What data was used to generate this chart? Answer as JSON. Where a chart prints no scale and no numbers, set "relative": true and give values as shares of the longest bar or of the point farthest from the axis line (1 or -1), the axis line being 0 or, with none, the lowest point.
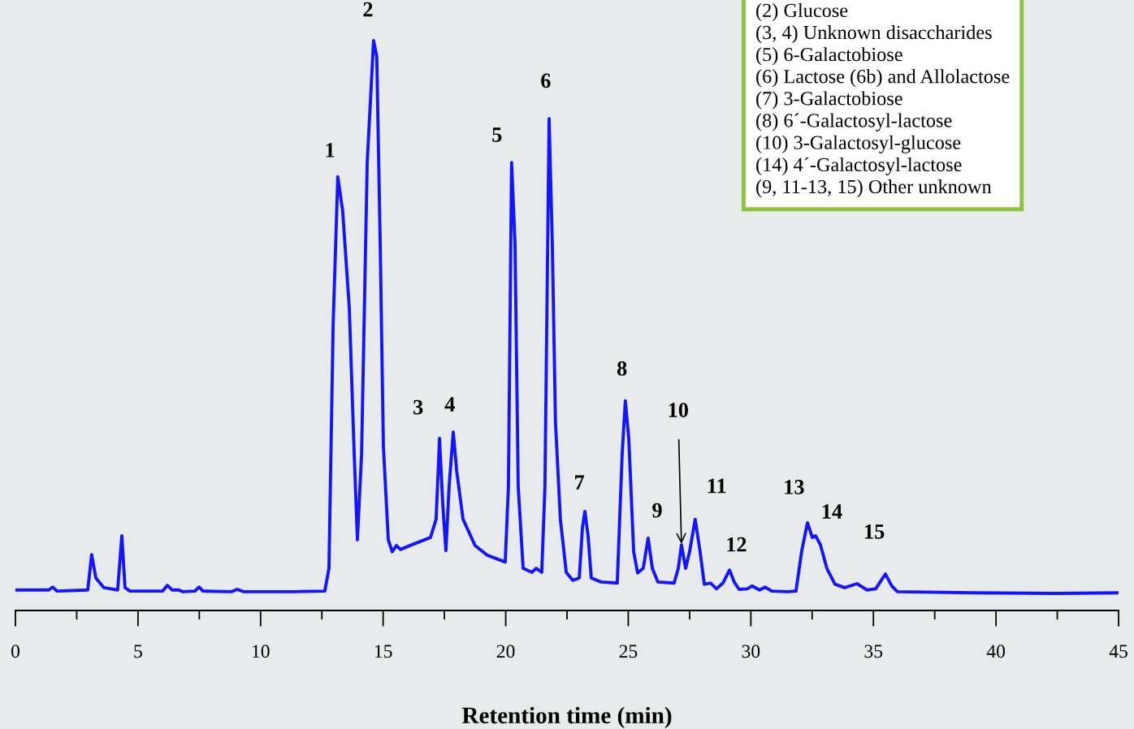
{
  "chart_data": {
    "type": "line",
    "relative": true,
    "xlabel": "Retention time (min)",
    "xlim": [
      0,
      45
    ],
    "xticks": [
      0,
      5,
      10,
      15,
      20,
      25,
      30,
      35,
      40,
      45
    ],
    "grid": false,
    "marker": "none",
    "line_style": "solid",
    "series": [
      {
        "color": "#1414ff",
        "x": [
          0,
          1.36,
          1.52,
          1.69,
          2.95,
          3.11,
          3.28,
          3.61,
          4.17,
          4.34,
          4.47,
          4.67,
          6.0,
          6.2,
          6.39,
          6.66,
          6.83,
          7.32,
          7.49,
          7.65,
          8.81,
          9.05,
          9.31,
          11.3,
          12.62,
          12.79,
          12.96,
          13.15,
          13.35,
          13.62,
          13.82,
          13.95,
          14.12,
          14.35,
          14.61,
          14.74,
          14.88,
          15.01,
          15.21,
          15.37,
          15.54,
          15.71,
          16.27,
          16.93,
          17.16,
          17.3,
          17.43,
          17.56,
          17.69,
          17.86,
          18.0,
          18.26,
          18.75,
          19.25,
          19.98,
          20.11,
          20.24,
          20.38,
          20.51,
          20.71,
          21.07,
          21.24,
          21.47,
          21.6,
          21.77,
          21.9,
          22.03,
          22.23,
          22.47,
          22.73,
          23.0,
          23.13,
          23.23,
          23.36,
          23.49,
          23.89,
          24.55,
          24.75,
          24.88,
          25.02,
          25.22,
          25.38,
          25.61,
          25.81,
          25.98,
          26.21,
          26.87,
          27.04,
          27.17,
          27.34,
          27.5,
          27.73,
          27.93,
          28.1,
          28.36,
          28.6,
          28.86,
          29.13,
          29.32,
          29.52,
          29.85,
          30.05,
          30.35,
          30.58,
          30.85,
          31.51,
          31.84,
          32.07,
          32.31,
          32.51,
          32.64,
          32.84,
          33.1,
          33.43,
          33.83,
          34.33,
          34.73,
          35.09,
          35.49,
          35.75,
          35.98,
          39.13,
          42.44,
          45
        ],
        "values": [
          0.036,
          0.036,
          0.041,
          0.034,
          0.036,
          0.098,
          0.057,
          0.04,
          0.036,
          0.131,
          0.04,
          0.034,
          0.034,
          0.044,
          0.036,
          0.036,
          0.033,
          0.034,
          0.041,
          0.034,
          0.033,
          0.037,
          0.033,
          0.033,
          0.034,
          0.074,
          0.501,
          0.761,
          0.701,
          0.53,
          0.274,
          0.124,
          0.274,
          0.786,
          1,
          0.972,
          0.644,
          0.288,
          0.124,
          0.103,
          0.114,
          0.107,
          0.117,
          0.128,
          0.16,
          0.302,
          0.188,
          0.105,
          0.217,
          0.313,
          0.245,
          0.16,
          0.114,
          0.097,
          0.085,
          0.217,
          0.786,
          0.644,
          0.217,
          0.074,
          0.067,
          0.074,
          0.067,
          0.217,
          0.863,
          0.644,
          0.33,
          0.16,
          0.067,
          0.053,
          0.057,
          0.145,
          0.174,
          0.131,
          0.057,
          0.05,
          0.048,
          0.274,
          0.368,
          0.302,
          0.103,
          0.066,
          0.074,
          0.127,
          0.074,
          0.05,
          0.048,
          0.074,
          0.115,
          0.074,
          0.103,
          0.16,
          0.103,
          0.046,
          0.048,
          0.038,
          0.048,
          0.071,
          0.05,
          0.037,
          0.038,
          0.043,
          0.036,
          0.041,
          0.034,
          0.033,
          0.034,
          0.103,
          0.154,
          0.128,
          0.131,
          0.115,
          0.074,
          0.046,
          0.04,
          0.047,
          0.036,
          0.038,
          0.064,
          0.043,
          0.033,
          0.031,
          0.03,
          0.031
        ]
      }
    ],
    "annotations": [
      {
        "text": "1",
        "x": 13.15,
        "y": 0.761
      },
      {
        "text": "2",
        "x": 14.61,
        "y": 1
      },
      {
        "text": "3",
        "x": 17.3,
        "y": 0.302
      },
      {
        "text": "4",
        "x": 17.86,
        "y": 0.313
      },
      {
        "text": "5",
        "x": 20.24,
        "y": 0.786
      },
      {
        "text": "6",
        "x": 21.77,
        "y": 0.863
      },
      {
        "text": "7",
        "x": 23.23,
        "y": 0.174
      },
      {
        "text": "8",
        "x": 24.88,
        "y": 0.368
      },
      {
        "text": "9",
        "x": 25.81,
        "y": 0.127
      },
      {
        "text": "10",
        "x": 27.17,
        "y": 0.115
      },
      {
        "text": "11",
        "x": 27.73,
        "y": 0.16
      },
      {
        "text": "12",
        "x": 29.13,
        "y": 0.071
      },
      {
        "text": "13",
        "x": 32.31,
        "y": 0.154
      },
      {
        "text": "14",
        "x": 32.84,
        "y": 0.115
      },
      {
        "text": "15",
        "x": 35.49,
        "y": 0.064
      },
      "(2) Glucose",
      "(3, 4) Unknown disaccharides",
      "(5) 6-Galactobiose",
      "(6) Lactose (6b) and Allolactose",
      "(7) 3-Galactobiose",
      "(8) 6´-Galactosyl-lactose",
      "(10) 3-Galactosyl-glucose",
      "(14) 4´-Galactosyl-lactose",
      "(9, 11-13, 15) Other unknown"
    ]
  }
}
